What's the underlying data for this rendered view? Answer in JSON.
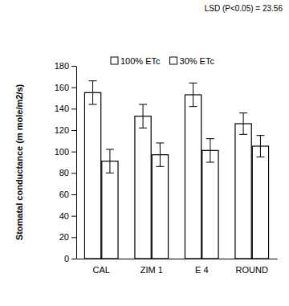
{
  "chart_data": {
    "type": "bar",
    "annotation": "LSD (P<0.05) = 23.56",
    "y_label": "Stomatal conductance (m mole/m2/s)",
    "categories": [
      "CAL",
      "ZIM 1",
      "E 4",
      "ROUND"
    ],
    "series": [
      {
        "name": "100% ETc",
        "color": "#ffffff",
        "values": [
          155,
          133,
          153,
          126
        ],
        "errors": [
          11,
          11,
          11,
          10
        ]
      },
      {
        "name": "30% ETc",
        "color": "#ffffff",
        "values": [
          91,
          97,
          101,
          105
        ],
        "errors": [
          11,
          11,
          11,
          10
        ]
      }
    ],
    "ylim": [
      0,
      180
    ],
    "yticks": [
      0,
      20,
      40,
      60,
      80,
      100,
      120,
      140,
      160,
      180
    ],
    "legend": "top",
    "grid": false
  }
}
